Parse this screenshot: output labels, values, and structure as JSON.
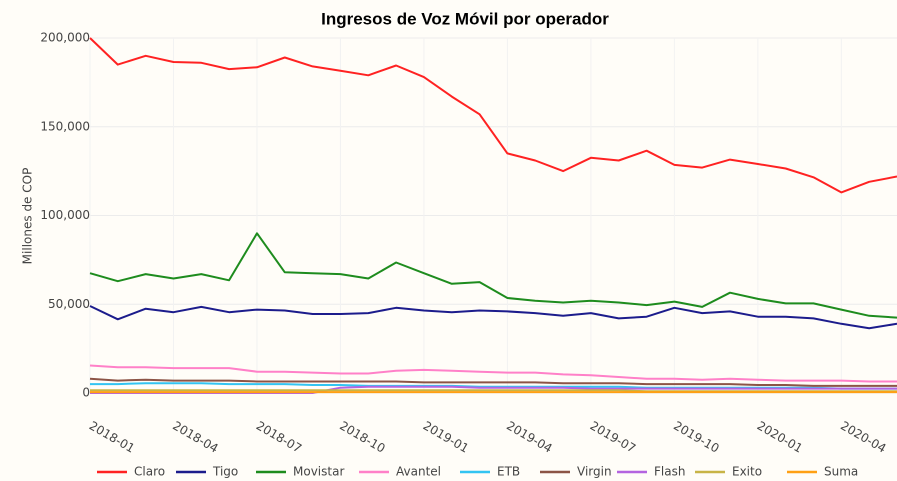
{
  "chart_data": {
    "type": "line",
    "title": "Ingresos de Voz Móvil por operador",
    "y_label": "Millones de COP",
    "categories": [
      "2018-01",
      null,
      null,
      "2018-04",
      null,
      null,
      "2018-07",
      null,
      null,
      "2018-10",
      null,
      null,
      "2019-01",
      null,
      null,
      "2019-04",
      null,
      null,
      "2019-07",
      null,
      null,
      "2019-10",
      null,
      null,
      "2020-01",
      null,
      null,
      "2020-04",
      null,
      null
    ],
    "ylim": [
      0,
      200000
    ],
    "yticks": [
      0,
      {
        "value": 50000,
        "label": "50,000"
      },
      {
        "value": 100000,
        "label": "100,000"
      },
      {
        "value": 150000,
        "label": "150,000"
      },
      {
        "value": 200000,
        "label": "200,000"
      }
    ],
    "grid": true,
    "legend": "bottom",
    "series": [
      {
        "name": "Claro",
        "color": "#ff2222",
        "values": [
          200000,
          185000,
          190000,
          186500,
          186000,
          182500,
          183500,
          189000,
          184000,
          181500,
          179000,
          184500,
          178000,
          167000,
          157000,
          135000,
          131000,
          125000,
          132500,
          131000,
          136500,
          128500,
          127000,
          131500,
          129000,
          126500,
          121500,
          113000,
          119000,
          122000
        ]
      },
      {
        "name": "Tigo",
        "color": "#1c1c8c",
        "values": [
          49000,
          41500,
          47500,
          45500,
          48500,
          45500,
          47000,
          46500,
          44500,
          44500,
          45000,
          48000,
          46500,
          45500,
          46500,
          46000,
          45000,
          43500,
          45000,
          42000,
          43000,
          48000,
          45000,
          46000,
          43000,
          43000,
          42000,
          39000,
          36500,
          39000
        ]
      },
      {
        "name": "Movistar",
        "color": "#1e8c1e",
        "values": [
          67500,
          63000,
          67000,
          64500,
          67000,
          63500,
          90000,
          68000,
          67500,
          67000,
          64500,
          73500,
          67500,
          61500,
          62500,
          53500,
          52000,
          51000,
          52000,
          51000,
          49500,
          51500,
          48500,
          56500,
          53000,
          50500,
          50500,
          47000,
          43500,
          42500
        ]
      },
      {
        "name": "Avantel",
        "color": "#ff80c8",
        "values": [
          15500,
          14500,
          14500,
          14000,
          14000,
          14000,
          12000,
          12000,
          11500,
          11000,
          11000,
          12500,
          13000,
          12500,
          12000,
          11500,
          11500,
          10500,
          10000,
          9000,
          8000,
          8000,
          7500,
          8000,
          7500,
          7000,
          7000,
          7000,
          6500,
          6500
        ]
      },
      {
        "name": "ETB",
        "color": "#33c4f2",
        "values": [
          5000,
          5000,
          5500,
          5500,
          5500,
          5000,
          5000,
          5000,
          4500,
          4500,
          4000,
          4000,
          4000,
          4000,
          3500,
          3500,
          3500,
          3500,
          3500,
          3500,
          3000,
          3000,
          3000,
          3000,
          3000,
          3000,
          3000,
          2500,
          2500,
          2500
        ]
      },
      {
        "name": "Virgin",
        "color": "#8c5446",
        "values": [
          8000,
          7000,
          7500,
          7000,
          7000,
          7000,
          6500,
          6500,
          6500,
          6500,
          6500,
          6500,
          6000,
          6000,
          6000,
          6000,
          6000,
          5500,
          5500,
          5500,
          5000,
          5000,
          5000,
          5000,
          4500,
          4500,
          4000,
          4000,
          4000,
          4000
        ]
      },
      {
        "name": "Flash",
        "color": "#b464e0",
        "values": [
          0,
          0,
          0,
          0,
          0,
          0,
          0,
          0,
          0,
          3000,
          3500,
          3500,
          3500,
          3500,
          3000,
          3000,
          3000,
          3000,
          2500,
          2500,
          2500,
          2500,
          2500,
          2500,
          2500,
          2500,
          2500,
          2500,
          2500,
          2500
        ]
      },
      {
        "name": "Exito",
        "color": "#c8b446",
        "values": [
          1500,
          1500,
          1500,
          1500,
          1500,
          1500,
          1500,
          1500,
          1500,
          1500,
          1500,
          1500,
          1500,
          1500,
          1500,
          1500,
          1500,
          1500,
          1500,
          1500,
          1000,
          1000,
          1000,
          1000,
          1000,
          1000,
          1000,
          1000,
          1000,
          1000
        ]
      },
      {
        "name": "Suma",
        "color": "#ffa014",
        "values": [
          500,
          500,
          500,
          500,
          500,
          500,
          500,
          500,
          500,
          500,
          500,
          500,
          500,
          500,
          500,
          500,
          500,
          500,
          500,
          500,
          500,
          500,
          500,
          500,
          500,
          500,
          500,
          500,
          500,
          500
        ]
      }
    ]
  }
}
